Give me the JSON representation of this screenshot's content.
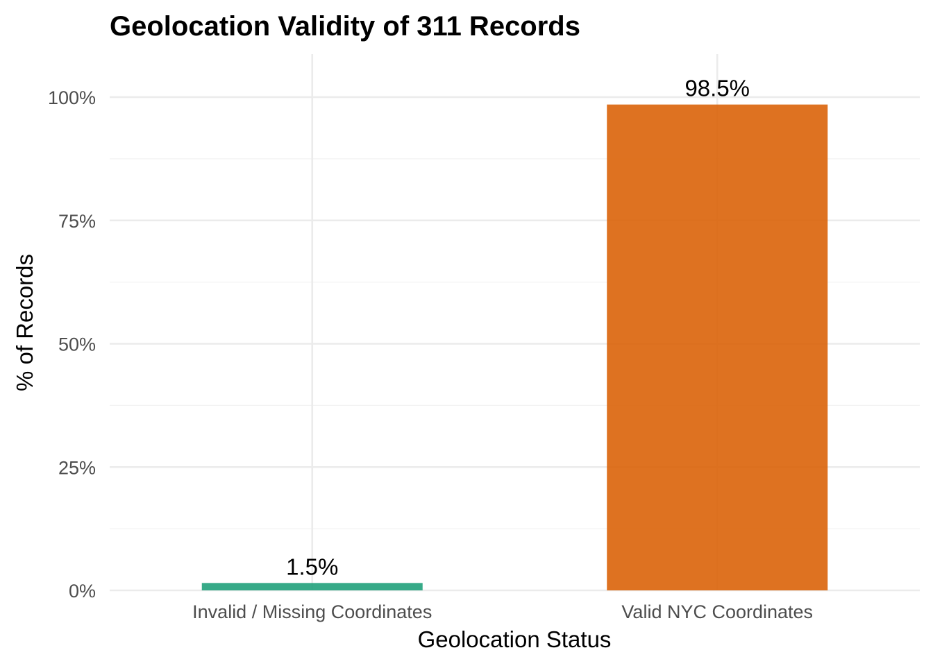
{
  "chart_data": {
    "type": "bar",
    "title": "Geolocation Validity of 311 Records",
    "xlabel": "Geolocation Status",
    "ylabel": "% of Records",
    "categories": [
      "Invalid / Missing Coordinates",
      "Valid NYC Coordinates"
    ],
    "values": [
      1.5,
      98.5
    ],
    "data_labels": [
      "1.5%",
      "98.5%"
    ],
    "colors": [
      "#1b9e77",
      "#d95f02"
    ],
    "ylim": [
      0,
      108
    ],
    "y_ticks": [
      0,
      25,
      50,
      75,
      100
    ],
    "y_tick_labels": [
      "0%",
      "25%",
      "50%",
      "75%",
      "100%"
    ],
    "grid": true,
    "legend": "none"
  }
}
